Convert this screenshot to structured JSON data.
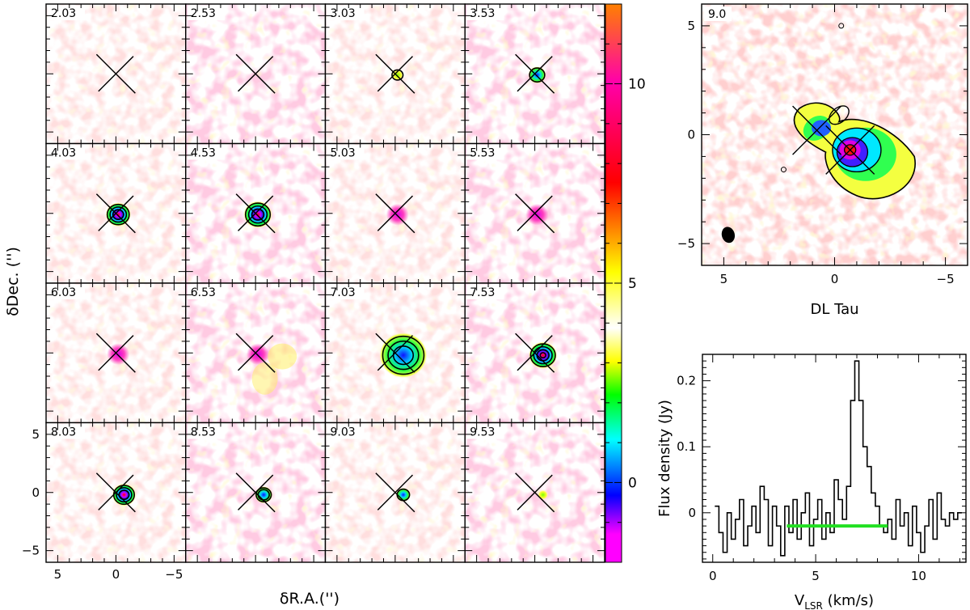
{
  "chart_data": [
    {
      "type": "heatmap",
      "description_role": "channel-map grid (4x4)",
      "xlabel": "δR.A.('')",
      "ylabel": "δDec. ('')",
      "xlim": [
        6,
        -6
      ],
      "ylim": [
        -6,
        6
      ],
      "x_ticks": [
        "5",
        "0",
        "−5"
      ],
      "y_ticks": [
        "5",
        "0",
        "−5"
      ],
      "panels": [
        {
          "label": "2.03",
          "peak": 0.0,
          "contours": 0
        },
        {
          "label": "2.53",
          "peak": 0.0,
          "contours": 0
        },
        {
          "label": "3.03",
          "peak": 2.0,
          "contours": 1
        },
        {
          "label": "3.53",
          "peak": 3.0,
          "contours": 1
        },
        {
          "label": "4.03",
          "peak": 7.0,
          "contours": 3
        },
        {
          "label": "4.53",
          "peak": 9.0,
          "contours": 3
        },
        {
          "label": "5.03",
          "peak": 10.0,
          "contours": 0
        },
        {
          "label": "5.53",
          "peak": 10.0,
          "contours": 0
        },
        {
          "label": "6.03",
          "peak": 10.0,
          "contours": 0
        },
        {
          "label": "6.53",
          "peak": 10.0,
          "contours": 0
        },
        {
          "label": "7.03",
          "peak": 7.0,
          "contours": 3
        },
        {
          "label": "7.53",
          "peak": 11.0,
          "contours": 4
        },
        {
          "label": "8.03",
          "peak": 6.0,
          "contours": 3
        },
        {
          "label": "8.53",
          "peak": 4.0,
          "contours": 2
        },
        {
          "label": "9.03",
          "peak": 3.0,
          "contours": 1
        },
        {
          "label": "9.53",
          "peak": 1.5,
          "contours": 0
        }
      ]
    },
    {
      "type": "heatmap",
      "description_role": "colorbar",
      "range": [
        -2,
        12
      ],
      "ticks": [
        "0",
        "5",
        "10"
      ],
      "colors": [
        "#ff00ff",
        "#ff00ff",
        "#0000ff",
        "#00ffff",
        "#00ff00",
        "#ffff00",
        "#ffffff",
        "#ffff00",
        "#ff0000",
        "#ff8000"
      ]
    },
    {
      "type": "heatmap",
      "description_role": "integrated map",
      "label": "9.0",
      "caption": "DL Tau",
      "xlim": [
        6,
        -6
      ],
      "ylim": [
        -6,
        6
      ],
      "x_ticks": [
        "5",
        "0",
        "−5"
      ],
      "y_ticks": [
        "5",
        "0",
        "−5"
      ],
      "peak": 10.5
    },
    {
      "type": "line",
      "description_role": "spectrum",
      "xlabel_main": "V",
      "xlabel_sub": "LSR",
      "xlabel_units": " (km/s)",
      "ylabel": "Flux density  (Jy)",
      "xlim": [
        -0.5,
        12.3
      ],
      "ylim": [
        -0.075,
        0.24
      ],
      "x_ticks": [
        "0",
        "5",
        "10"
      ],
      "y_ticks": [
        "0",
        "0.1",
        "0.2"
      ],
      "x": [
        0.2,
        0.4,
        0.6,
        0.8,
        1.0,
        1.2,
        1.4,
        1.6,
        1.8,
        2.0,
        2.2,
        2.4,
        2.6,
        2.8,
        3.0,
        3.2,
        3.4,
        3.6,
        3.8,
        4.0,
        4.2,
        4.4,
        4.6,
        4.8,
        5.0,
        5.2,
        5.4,
        5.6,
        5.8,
        6.0,
        6.2,
        6.4,
        6.6,
        6.8,
        7.0,
        7.2,
        7.4,
        7.6,
        7.8,
        8.0,
        8.2,
        8.4,
        8.6,
        8.8,
        9.0,
        9.2,
        9.4,
        9.6,
        9.8,
        10.0,
        10.2,
        10.4,
        10.6,
        10.8,
        11.0,
        11.2,
        11.4,
        11.6,
        11.8,
        12.0
      ],
      "y": [
        0.01,
        -0.03,
        -0.06,
        0.0,
        -0.04,
        -0.01,
        0.02,
        -0.05,
        -0.02,
        0.01,
        -0.03,
        0.04,
        0.02,
        -0.05,
        0.01,
        -0.02,
        -0.065,
        0.01,
        -0.03,
        0.02,
        -0.04,
        0.0,
        0.03,
        -0.05,
        -0.01,
        0.02,
        -0.04,
        0.0,
        -0.03,
        0.05,
        0.02,
        -0.01,
        0.04,
        0.17,
        0.23,
        0.17,
        0.1,
        0.07,
        0.03,
        0.01,
        -0.02,
        -0.03,
        -0.01,
        -0.04,
        0.02,
        -0.02,
        0.0,
        -0.05,
        0.01,
        -0.03,
        -0.06,
        -0.02,
        0.02,
        -0.04,
        0.03,
        -0.01,
        -0.02,
        0.0,
        -0.01,
        0.0
      ],
      "velocity_range_bar": {
        "from": 3.6,
        "to": 8.5,
        "level": -0.02,
        "color": "#22e022"
      }
    }
  ]
}
